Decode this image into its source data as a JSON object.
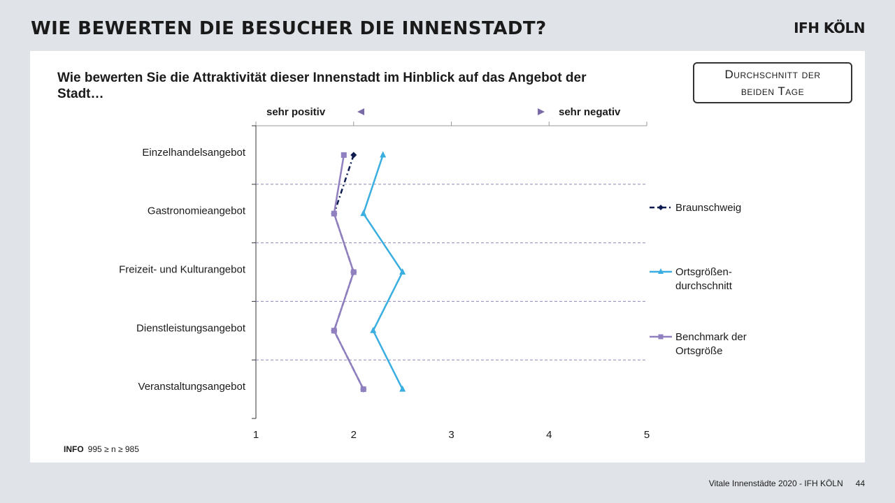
{
  "header": {
    "title": "WIE BEWERTEN DIE BESUCHER DIE INNENSTADT?",
    "brand": "IFH KÖLN"
  },
  "question": "Wie bewerten Sie die Attraktivität dieser Innenstadt im Hinblick auf das Angebot der Stadt…",
  "badge": {
    "line1": "Durchschnitt der",
    "line2": "beiden Tage"
  },
  "scale": {
    "left_label": "sehr positiv",
    "right_label": "sehr negativ"
  },
  "chart_data": {
    "type": "line",
    "orientation": "horizontal",
    "categories": [
      "Einzelhandelsangebot",
      "Gastronomieangebot",
      "Freizeit- und Kulturangebot",
      "Dienstleistungsangebot",
      "Veranstaltungsangebot"
    ],
    "xlim": [
      1,
      5
    ],
    "xticks": [
      "1",
      "2",
      "3",
      "4",
      "5"
    ],
    "series": [
      {
        "name": "Braunschweig",
        "values": [
          2.0,
          1.8,
          2.0,
          1.8,
          2.1
        ],
        "color": "#0d1b4f",
        "marker": "diamond",
        "dash": "dash-dot"
      },
      {
        "name": "Ortsgrößen-\ndurchschnitt",
        "values": [
          2.3,
          2.1,
          2.5,
          2.2,
          2.5
        ],
        "color": "#3aaee0",
        "marker": "triangle",
        "dash": "solid"
      },
      {
        "name": "Benchmark der\nOrtsgröße",
        "values": [
          1.9,
          1.8,
          2.0,
          1.8,
          2.1
        ],
        "color": "#9080c0",
        "marker": "square",
        "dash": "solid"
      }
    ],
    "legend_position": "right",
    "grid": "dashed horizontal separators between categories"
  },
  "info": {
    "label": "INFO",
    "text": "995 ≥ n ≥ 985"
  },
  "footer": {
    "source": "Vitale Innenstädte 2020 - IFH KÖLN",
    "page": "44"
  }
}
